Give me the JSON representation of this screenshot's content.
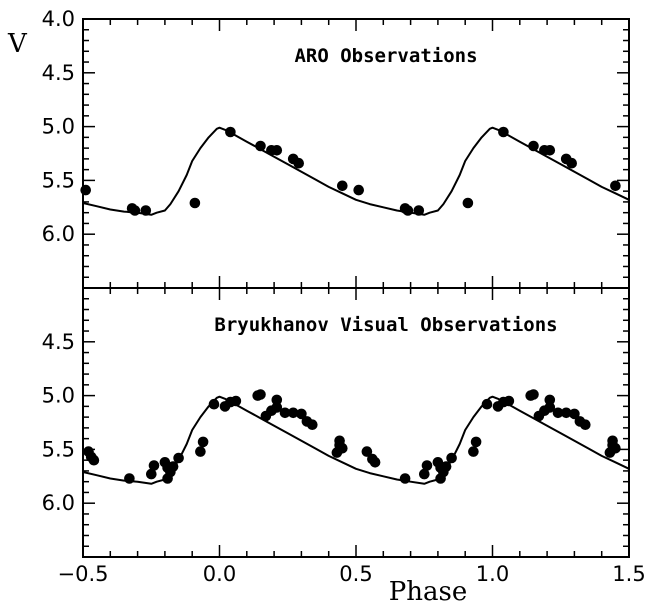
{
  "chart_data": {
    "type": "scatter",
    "xlabel": "Phase",
    "ylabel": "V",
    "xlim": [
      -0.5,
      1.5
    ],
    "x_ticks": [
      -0.5,
      0.0,
      0.5,
      1.0,
      1.5
    ],
    "x_tick_labels": [
      "−0.5",
      "0.0",
      "0.5",
      "1.0",
      "1.5"
    ],
    "grid": false,
    "panels": [
      {
        "title": "ARO Observations",
        "ylim": [
          6.5,
          4.0
        ],
        "y_inverted": true,
        "y_ticks": [
          4.0,
          4.5,
          5.0,
          5.5,
          6.0
        ],
        "y_tick_labels": [
          "4.0",
          "4.5",
          "5.0",
          "5.5",
          "6.0"
        ],
        "points": [
          [
            -0.49,
            5.59
          ],
          [
            -0.32,
            5.76
          ],
          [
            -0.31,
            5.78
          ],
          [
            -0.27,
            5.78
          ],
          [
            -0.09,
            5.71
          ],
          [
            0.04,
            5.05
          ],
          [
            0.15,
            5.18
          ],
          [
            0.19,
            5.22
          ],
          [
            0.21,
            5.22
          ],
          [
            0.27,
            5.3
          ],
          [
            0.29,
            5.34
          ],
          [
            0.45,
            5.55
          ],
          [
            0.51,
            5.59
          ],
          [
            0.68,
            5.76
          ],
          [
            0.69,
            5.78
          ],
          [
            0.73,
            5.78
          ],
          [
            0.91,
            5.71
          ],
          [
            1.04,
            5.05
          ],
          [
            1.15,
            5.18
          ],
          [
            1.19,
            5.22
          ],
          [
            1.21,
            5.22
          ],
          [
            1.27,
            5.3
          ],
          [
            1.29,
            5.34
          ],
          [
            1.45,
            5.55
          ]
        ],
        "model": [
          [
            -0.5,
            5.71
          ],
          [
            -0.45,
            5.74
          ],
          [
            -0.4,
            5.77
          ],
          [
            -0.35,
            5.79
          ],
          [
            -0.3,
            5.8
          ],
          [
            -0.25,
            5.82
          ],
          [
            -0.23,
            5.8
          ],
          [
            -0.2,
            5.78
          ],
          [
            -0.18,
            5.72
          ],
          [
            -0.15,
            5.6
          ],
          [
            -0.12,
            5.45
          ],
          [
            -0.1,
            5.32
          ],
          [
            -0.07,
            5.2
          ],
          [
            -0.04,
            5.1
          ],
          [
            -0.01,
            5.02
          ],
          [
            0.0,
            5.01
          ],
          [
            0.02,
            5.03
          ],
          [
            0.05,
            5.07
          ],
          [
            0.1,
            5.14
          ],
          [
            0.15,
            5.21
          ],
          [
            0.2,
            5.28
          ],
          [
            0.25,
            5.35
          ],
          [
            0.3,
            5.42
          ],
          [
            0.35,
            5.49
          ],
          [
            0.4,
            5.56
          ],
          [
            0.45,
            5.62
          ],
          [
            0.5,
            5.68
          ],
          [
            0.55,
            5.72
          ],
          [
            0.6,
            5.75
          ],
          [
            0.65,
            5.78
          ],
          [
            0.7,
            5.8
          ],
          [
            0.75,
            5.82
          ],
          [
            0.77,
            5.8
          ],
          [
            0.8,
            5.78
          ],
          [
            0.82,
            5.72
          ],
          [
            0.85,
            5.6
          ],
          [
            0.88,
            5.45
          ],
          [
            0.9,
            5.32
          ],
          [
            0.93,
            5.2
          ],
          [
            0.96,
            5.1
          ],
          [
            0.99,
            5.02
          ],
          [
            1.0,
            5.01
          ],
          [
            1.02,
            5.03
          ],
          [
            1.05,
            5.07
          ],
          [
            1.1,
            5.14
          ],
          [
            1.15,
            5.21
          ],
          [
            1.2,
            5.28
          ],
          [
            1.25,
            5.35
          ],
          [
            1.3,
            5.42
          ],
          [
            1.35,
            5.49
          ],
          [
            1.4,
            5.56
          ],
          [
            1.45,
            5.62
          ],
          [
            1.5,
            5.68
          ]
        ]
      },
      {
        "title": "Bryukhanov Visual Observations",
        "ylim": [
          6.5,
          4.0
        ],
        "y_inverted": true,
        "y_ticks": [
          4.0,
          4.5,
          5.0,
          5.5,
          6.0
        ],
        "y_tick_labels": [
          "",
          "4.5",
          "5.0",
          "5.5",
          "6.0"
        ],
        "points": [
          [
            -0.48,
            5.52
          ],
          [
            -0.47,
            5.57
          ],
          [
            -0.46,
            5.6
          ],
          [
            -0.33,
            5.77
          ],
          [
            -0.25,
            5.73
          ],
          [
            -0.24,
            5.65
          ],
          [
            -0.2,
            5.62
          ],
          [
            -0.19,
            5.77
          ],
          [
            -0.19,
            5.67
          ],
          [
            -0.18,
            5.71
          ],
          [
            -0.17,
            5.66
          ],
          [
            -0.15,
            5.58
          ],
          [
            -0.07,
            5.52
          ],
          [
            -0.06,
            5.43
          ],
          [
            -0.02,
            5.08
          ],
          [
            0.02,
            5.1
          ],
          [
            0.04,
            5.06
          ],
          [
            0.06,
            5.05
          ],
          [
            0.14,
            5.0
          ],
          [
            0.15,
            4.99
          ],
          [
            0.17,
            5.19
          ],
          [
            0.19,
            5.14
          ],
          [
            0.21,
            5.04
          ],
          [
            0.21,
            5.11
          ],
          [
            0.24,
            5.16
          ],
          [
            0.27,
            5.16
          ],
          [
            0.3,
            5.17
          ],
          [
            0.32,
            5.24
          ],
          [
            0.34,
            5.27
          ],
          [
            0.43,
            5.53
          ],
          [
            0.44,
            5.46
          ],
          [
            0.45,
            5.49
          ],
          [
            0.44,
            5.42
          ],
          [
            0.54,
            5.52
          ],
          [
            0.56,
            5.59
          ],
          [
            0.57,
            5.62
          ],
          [
            0.68,
            5.77
          ],
          [
            0.75,
            5.73
          ],
          [
            0.76,
            5.65
          ],
          [
            0.8,
            5.62
          ],
          [
            0.81,
            5.77
          ],
          [
            0.81,
            5.67
          ],
          [
            0.82,
            5.71
          ],
          [
            0.83,
            5.66
          ],
          [
            0.85,
            5.58
          ],
          [
            0.93,
            5.52
          ],
          [
            0.94,
            5.43
          ],
          [
            0.98,
            5.08
          ],
          [
            1.02,
            5.1
          ],
          [
            1.04,
            5.06
          ],
          [
            1.06,
            5.05
          ],
          [
            1.14,
            5.0
          ],
          [
            1.15,
            4.99
          ],
          [
            1.17,
            5.19
          ],
          [
            1.19,
            5.14
          ],
          [
            1.21,
            5.04
          ],
          [
            1.21,
            5.11
          ],
          [
            1.24,
            5.16
          ],
          [
            1.27,
            5.16
          ],
          [
            1.3,
            5.17
          ],
          [
            1.32,
            5.24
          ],
          [
            1.34,
            5.27
          ],
          [
            1.43,
            5.53
          ],
          [
            1.44,
            5.46
          ],
          [
            1.45,
            5.49
          ],
          [
            1.44,
            5.42
          ]
        ],
        "model": [
          [
            -0.5,
            5.71
          ],
          [
            -0.45,
            5.74
          ],
          [
            -0.4,
            5.77
          ],
          [
            -0.35,
            5.79
          ],
          [
            -0.3,
            5.8
          ],
          [
            -0.25,
            5.82
          ],
          [
            -0.23,
            5.8
          ],
          [
            -0.2,
            5.78
          ],
          [
            -0.18,
            5.72
          ],
          [
            -0.15,
            5.6
          ],
          [
            -0.12,
            5.45
          ],
          [
            -0.1,
            5.32
          ],
          [
            -0.07,
            5.2
          ],
          [
            -0.04,
            5.1
          ],
          [
            -0.01,
            5.02
          ],
          [
            0.0,
            5.01
          ],
          [
            0.02,
            5.03
          ],
          [
            0.05,
            5.07
          ],
          [
            0.1,
            5.14
          ],
          [
            0.15,
            5.21
          ],
          [
            0.2,
            5.28
          ],
          [
            0.25,
            5.35
          ],
          [
            0.3,
            5.42
          ],
          [
            0.35,
            5.49
          ],
          [
            0.4,
            5.56
          ],
          [
            0.45,
            5.62
          ],
          [
            0.5,
            5.68
          ],
          [
            0.55,
            5.72
          ],
          [
            0.6,
            5.75
          ],
          [
            0.65,
            5.78
          ],
          [
            0.7,
            5.8
          ],
          [
            0.75,
            5.82
          ],
          [
            0.77,
            5.8
          ],
          [
            0.8,
            5.78
          ],
          [
            0.82,
            5.72
          ],
          [
            0.85,
            5.6
          ],
          [
            0.88,
            5.45
          ],
          [
            0.9,
            5.32
          ],
          [
            0.93,
            5.2
          ],
          [
            0.96,
            5.1
          ],
          [
            0.99,
            5.02
          ],
          [
            1.0,
            5.01
          ],
          [
            1.02,
            5.03
          ],
          [
            1.05,
            5.07
          ],
          [
            1.1,
            5.14
          ],
          [
            1.15,
            5.21
          ],
          [
            1.2,
            5.28
          ],
          [
            1.25,
            5.35
          ],
          [
            1.3,
            5.42
          ],
          [
            1.35,
            5.49
          ],
          [
            1.4,
            5.56
          ],
          [
            1.45,
            5.62
          ],
          [
            1.5,
            5.68
          ]
        ]
      }
    ]
  }
}
